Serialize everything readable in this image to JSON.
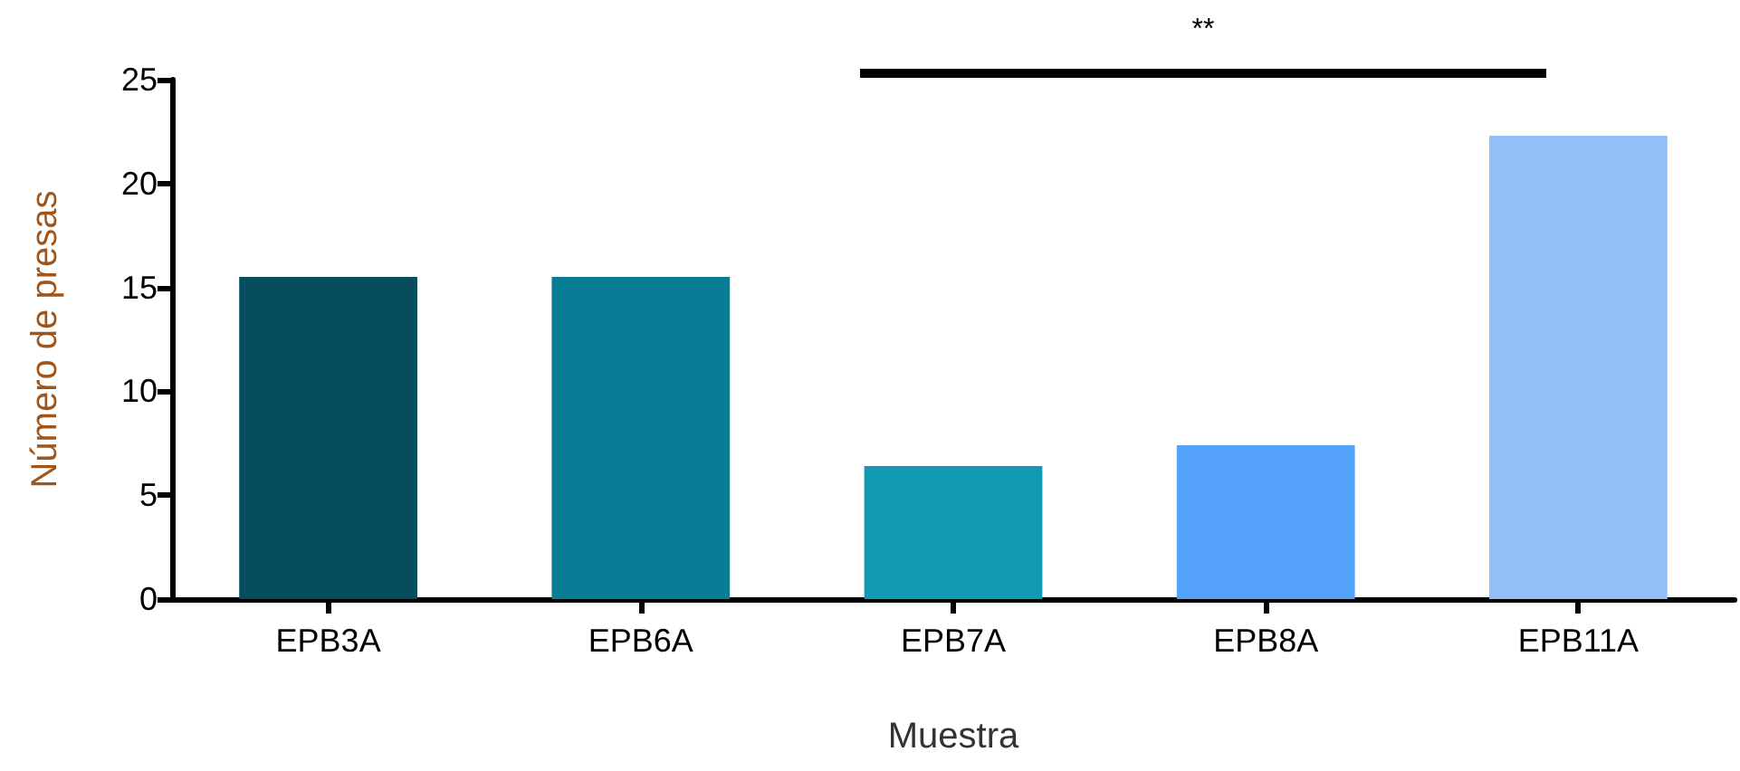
{
  "chart_data": {
    "type": "bar",
    "xlabel": "Muestra",
    "ylabel": "Número de presas",
    "categories": [
      "EPB3A",
      "EPB6A",
      "EPB7A",
      "EPB8A",
      "EPB11A"
    ],
    "values": [
      15.5,
      15.5,
      6.4,
      7.4,
      22.3
    ],
    "colors": [
      "#054d5f",
      "#087e96",
      "#119ab2",
      "#55a2fb",
      "#92bff8"
    ],
    "ylim": [
      0,
      25
    ],
    "yticks": [
      0,
      5,
      10,
      15,
      20,
      25
    ],
    "grid": false,
    "annotations": [
      "**"
    ]
  }
}
